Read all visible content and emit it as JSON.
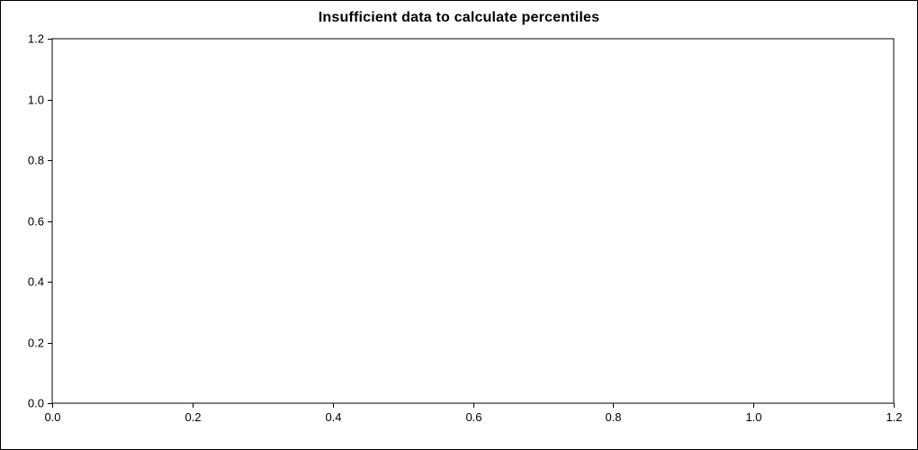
{
  "chart_data": {
    "type": "scatter",
    "title": "Insufficient data to calculate percentiles",
    "xlabel": "",
    "ylabel": "",
    "xlim": [
      0.0,
      1.2
    ],
    "ylim": [
      0.0,
      1.2
    ],
    "x_tick_labels": [
      "0.0",
      "0.2",
      "0.4",
      "0.6",
      "0.8",
      "1.0",
      "1.2"
    ],
    "y_tick_labels": [
      "0.0",
      "0.2",
      "0.4",
      "0.6",
      "0.8",
      "1.0",
      "1.2"
    ],
    "grid": false,
    "legend": null,
    "series": []
  },
  "style": {
    "axis_color": "#000000",
    "background_color": "#ffffff",
    "text_color": "#000000"
  }
}
